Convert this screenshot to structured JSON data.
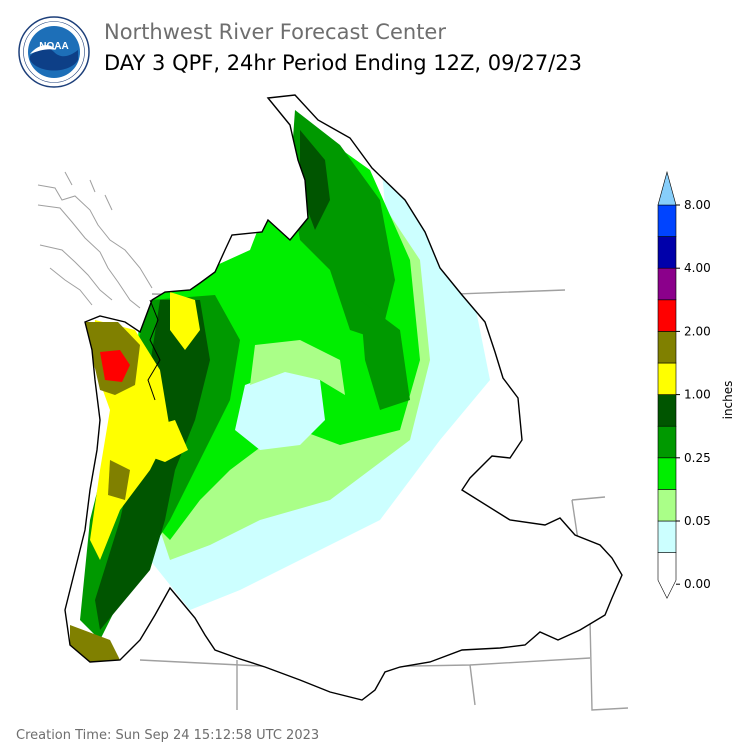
{
  "header": {
    "org_title": "Northwest River Forecast Center",
    "product_title": "DAY 3 QPF, 24hr Period Ending 12Z, 09/27/23"
  },
  "logo": {
    "center_text": "NOAA",
    "ring_text": "NATIONAL OCEANIC AND ATMOSPHERIC ADMINISTRATION · U.S. DEPARTMENT OF COMMERCE",
    "colors": {
      "ring": "#ffffff",
      "sky": "#1d6fb8",
      "bird": "#ffffff",
      "water": "#0d3f87"
    }
  },
  "legend": {
    "unit_label": "inches",
    "tick_labels": [
      "0.00",
      "0.05",
      "0.25",
      "1.00",
      "2.00",
      "4.00",
      "8.00"
    ],
    "bins": [
      {
        "color": "#ffffff"
      },
      {
        "color": "#ccffff"
      },
      {
        "color": "#aaff88"
      },
      {
        "color": "#00ee00"
      },
      {
        "color": "#009900"
      },
      {
        "color": "#005500"
      },
      {
        "color": "#ffff00"
      },
      {
        "color": "#808000"
      },
      {
        "color": "#ff0000"
      },
      {
        "color": "#8b008b"
      },
      {
        "color": "#0000aa"
      },
      {
        "color": "#0044ff"
      },
      {
        "color": "#87cefa"
      }
    ]
  },
  "map": {
    "colors": {
      "basin_outline": "#000000",
      "state_lines": "#a0a0a0",
      "coastline": "#a0a0a0"
    }
  },
  "footer": {
    "creation_time": "Creation Time: Sun Sep 24 15:12:58 UTC 2023"
  }
}
